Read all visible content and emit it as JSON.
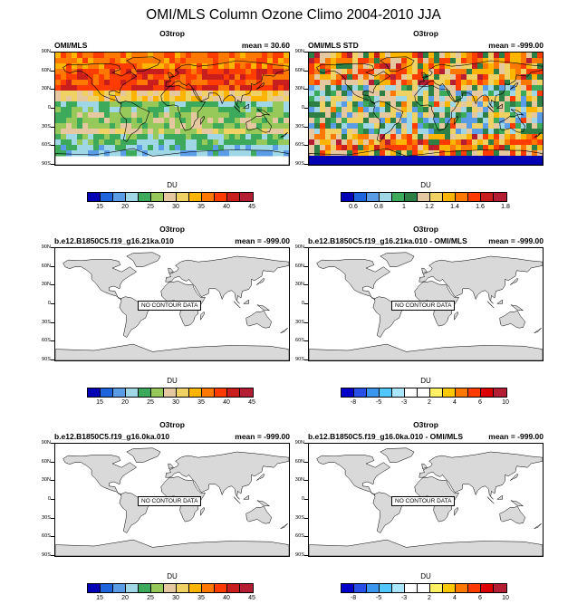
{
  "title": "OMI/MLS Column Ozone Climo 2004-2010 JJA",
  "colorbar_palettes": {
    "ozone": [
      "#0000b4",
      "#1e64dc",
      "#5a9ce6",
      "#a0d7e6",
      "#3caa5a",
      "#96c85a",
      "#e6c8a0",
      "#f0d264",
      "#ffb400",
      "#ff7800",
      "#ff3c00",
      "#c81e1e",
      "#b41e32"
    ],
    "std": [
      "#0000b4",
      "#1e64dc",
      "#5a9ce6",
      "#a0d7e6",
      "#3caa5a",
      "#2d7f46",
      "#e6c8a0",
      "#f0d264",
      "#ffb400",
      "#ff7800",
      "#ff3c00",
      "#c81e1e",
      "#b41e32"
    ],
    "diff": [
      "#0000c8",
      "#2850e6",
      "#3c96f0",
      "#50c8ff",
      "#aae6ff",
      "#ffffff",
      "#ffffff",
      "#fff064",
      "#ffc800",
      "#ff7800",
      "#ff3c00",
      "#dc0000",
      "#b41e32"
    ]
  },
  "lat_labels": [
    "90N",
    "60N",
    "30N",
    "0",
    "30S",
    "60S",
    "90S"
  ],
  "panels": [
    {
      "variable": "O3trop",
      "name": "OMI/MLS",
      "mean": "mean =  30.60",
      "has_data": true,
      "field": "ozone",
      "units": "DU",
      "palette": "ozone",
      "colorbar_labels": [
        "15",
        "20",
        "25",
        "30",
        "35",
        "40",
        "45"
      ]
    },
    {
      "variable": "O3trop",
      "name": "OMI/MLS STD",
      "mean": "mean = -999.00",
      "has_data": true,
      "field": "std",
      "units": "DU",
      "palette": "std",
      "colorbar_labels": [
        "0.6",
        "0.8",
        "1",
        "1.2",
        "1.4",
        "1.6",
        "1.8"
      ]
    },
    {
      "variable": "O3trop",
      "name": "b.e12.B1850C5.f19_g16.21ka.010",
      "mean": "mean = -999.00",
      "has_data": false,
      "no_data_text": "NO CONTOUR DATA",
      "units": "DU",
      "palette": "ozone",
      "colorbar_labels": [
        "15",
        "20",
        "25",
        "30",
        "35",
        "40",
        "45"
      ]
    },
    {
      "variable": "O3trop",
      "name": "b.e12.B1850C5.f19_g16.21ka.010 - OMI/MLS",
      "mean": "mean = -999.00",
      "has_data": false,
      "no_data_text": "NO CONTOUR DATA",
      "units": "DU",
      "palette": "diff",
      "colorbar_labels": [
        "-8",
        "-5",
        "-3",
        "2",
        "4",
        "6",
        "10"
      ]
    },
    {
      "variable": "O3trop",
      "name": "b.e12.B1850C5.f19_g16.0ka.010",
      "mean": "mean = -999.00",
      "has_data": false,
      "no_data_text": "NO CONTOUR DATA",
      "units": "DU",
      "palette": "ozone",
      "colorbar_labels": [
        "15",
        "20",
        "25",
        "30",
        "35",
        "40",
        "45"
      ]
    },
    {
      "variable": "O3trop",
      "name": "b.e12.B1850C5.f19_g16.0ka.010 - OMI/MLS",
      "mean": "mean = -999.00",
      "has_data": false,
      "no_data_text": "NO CONTOUR DATA",
      "units": "DU",
      "palette": "diff",
      "colorbar_labels": [
        "-8",
        "-5",
        "-3",
        "2",
        "4",
        "6",
        "10"
      ]
    }
  ]
}
